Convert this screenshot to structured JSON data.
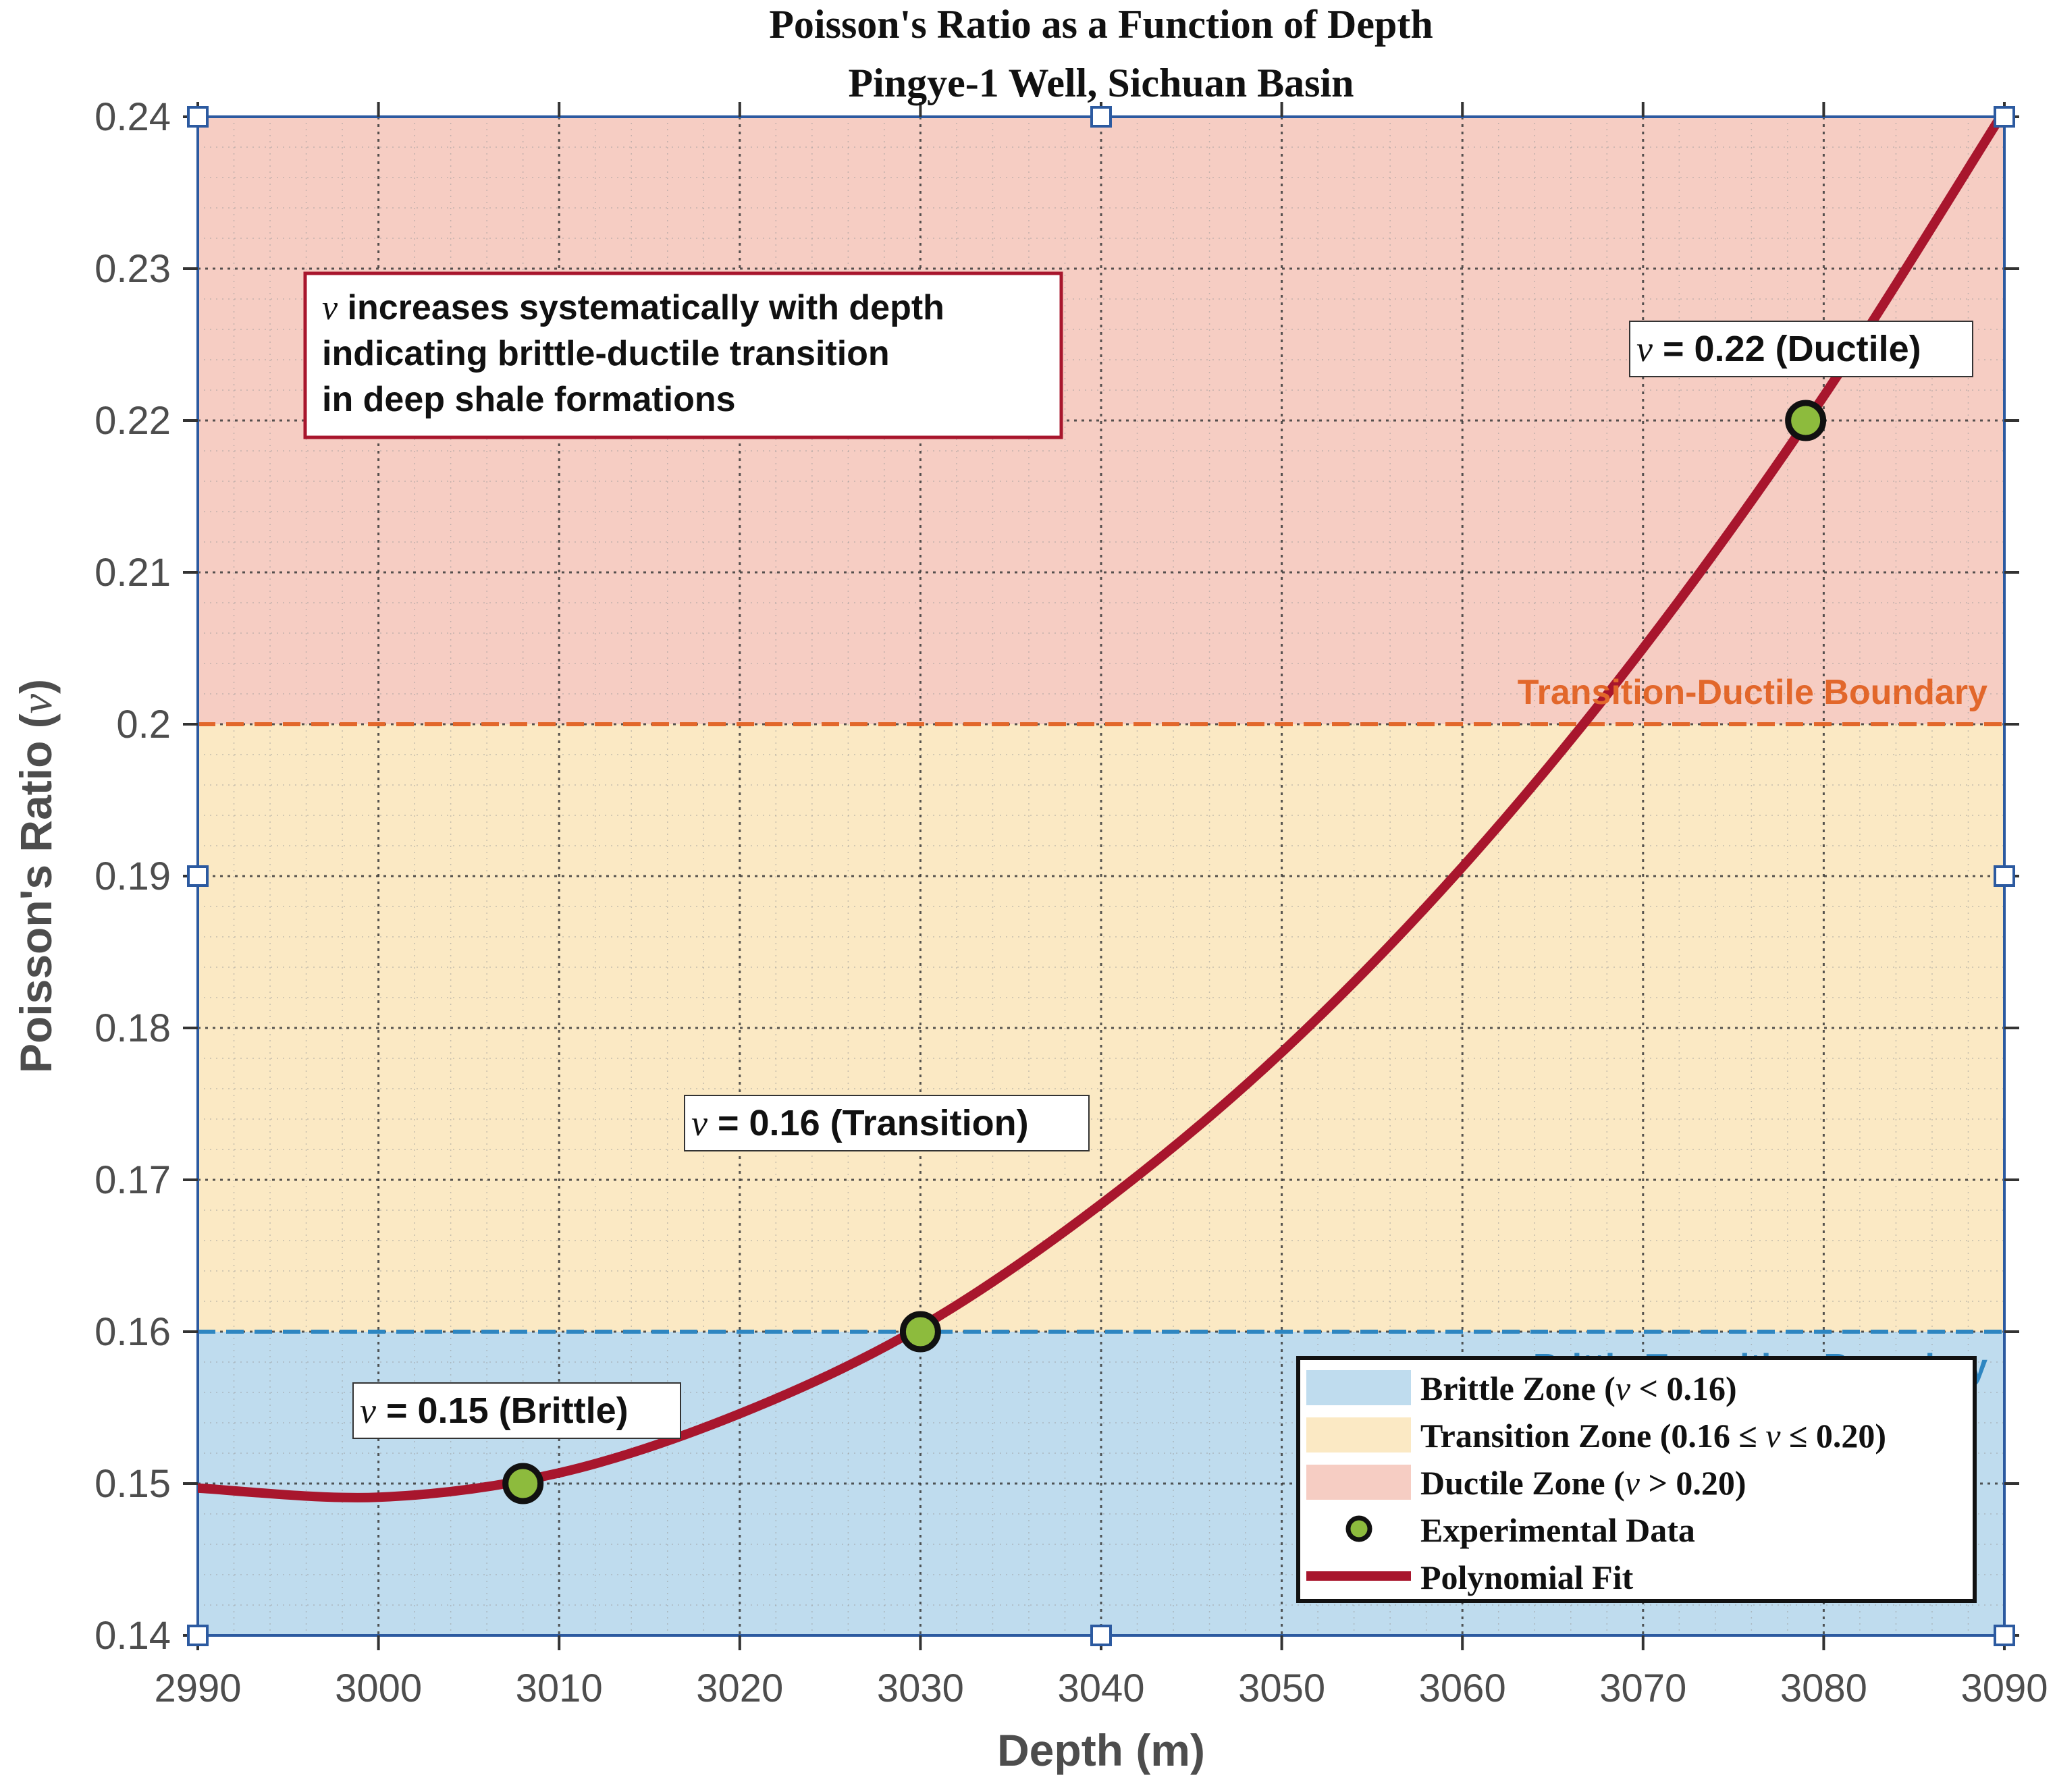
{
  "chart_data": {
    "type": "line",
    "title": "Poisson's Ratio as a Function of Depth",
    "subtitle": "Pingye-1 Well, Sichuan Basin",
    "xlabel": "Depth (m)",
    "ylabel_prefix": "Poisson's Ratio (",
    "ylabel_symbol": "ν",
    "ylabel_suffix": ")",
    "xlim": [
      2990,
      3090
    ],
    "ylim": [
      0.14,
      0.24
    ],
    "xticks": [
      2990,
      3000,
      3010,
      3020,
      3030,
      3040,
      3050,
      3060,
      3070,
      3080,
      3090
    ],
    "xtick_labels": [
      "2990",
      "3000",
      "3010",
      "3020",
      "3030",
      "3040",
      "3050",
      "3060",
      "3070",
      "3080",
      "3090"
    ],
    "yticks": [
      0.14,
      0.15,
      0.16,
      0.17,
      0.18,
      0.19,
      0.2,
      0.21,
      0.22,
      0.23,
      0.24
    ],
    "ytick_labels": [
      "0.14",
      "0.15",
      "0.16",
      "0.17",
      "0.18",
      "0.19",
      "0.2",
      "0.21",
      "0.22",
      "0.23",
      "0.24"
    ],
    "grid": true,
    "minor_grid": true,
    "zones": [
      {
        "name": "Brittle Zone",
        "y_from": 0.14,
        "y_to": 0.16,
        "color": "#bfdcee"
      },
      {
        "name": "Transition Zone",
        "y_from": 0.16,
        "y_to": 0.2,
        "color": "#fbe9c4"
      },
      {
        "name": "Ductile Zone",
        "y_from": 0.2,
        "y_to": 0.24,
        "color": "#f6cdc3"
      }
    ],
    "boundaries": [
      {
        "y": 0.2,
        "label": "Transition-Ductile Boundary",
        "color": "#e2672b"
      },
      {
        "y": 0.16,
        "label": "Brittle-Transition Boundary",
        "color": "#2e86c1"
      }
    ],
    "experimental_data": {
      "x": [
        3008,
        3030,
        3079
      ],
      "y": [
        0.15,
        0.16,
        0.22
      ],
      "color": "#8dbb3d"
    },
    "polynomial_fit": {
      "degree": 2,
      "color": "#a8162d",
      "points": [
        {
          "x": 2990,
          "y": 0.1497
        },
        {
          "x": 3000,
          "y": 0.1491
        },
        {
          "x": 3010,
          "y": 0.1507
        },
        {
          "x": 3020,
          "y": 0.1546
        },
        {
          "x": 3030,
          "y": 0.1603
        },
        {
          "x": 3040,
          "y": 0.1684
        },
        {
          "x": 3050,
          "y": 0.1784
        },
        {
          "x": 3060,
          "y": 0.1906
        },
        {
          "x": 3070,
          "y": 0.205
        },
        {
          "x": 3080,
          "y": 0.2216
        },
        {
          "x": 3090,
          "y": 0.2404
        }
      ]
    },
    "point_labels": [
      {
        "symbol": "ν",
        "text": " = 0.15 (Brittle)"
      },
      {
        "symbol": "ν",
        "text": " = 0.16 (Transition)"
      },
      {
        "symbol": "ν",
        "text": " = 0.22 (Ductile)"
      }
    ],
    "annotation": {
      "line1_symbol": "ν",
      "line1_text": " increases systematically with depth",
      "line2": "indicating brittle-ductile transition",
      "line3": "in deep shale formations"
    },
    "legend": {
      "location": "bottom-right",
      "entries": [
        {
          "prefix": "Brittle Zone (",
          "symbol": "ν",
          "suffix": " < 0.16)"
        },
        {
          "prefix": "Transition Zone (0.16 ≤ ",
          "symbol": "ν",
          "suffix": " ≤ 0.20)"
        },
        {
          "prefix": "Ductile Zone (",
          "symbol": "ν",
          "suffix": " > 0.20)"
        },
        {
          "prefix": "Experimental Data",
          "symbol": "",
          "suffix": ""
        },
        {
          "prefix": "Polynomial Fit",
          "symbol": "",
          "suffix": ""
        }
      ]
    },
    "colors": {
      "axis": "#2c5aa0",
      "grid": "#3a3a3a",
      "tick_text": "#4d4d4d",
      "annotation_border": "#a8162d"
    }
  }
}
